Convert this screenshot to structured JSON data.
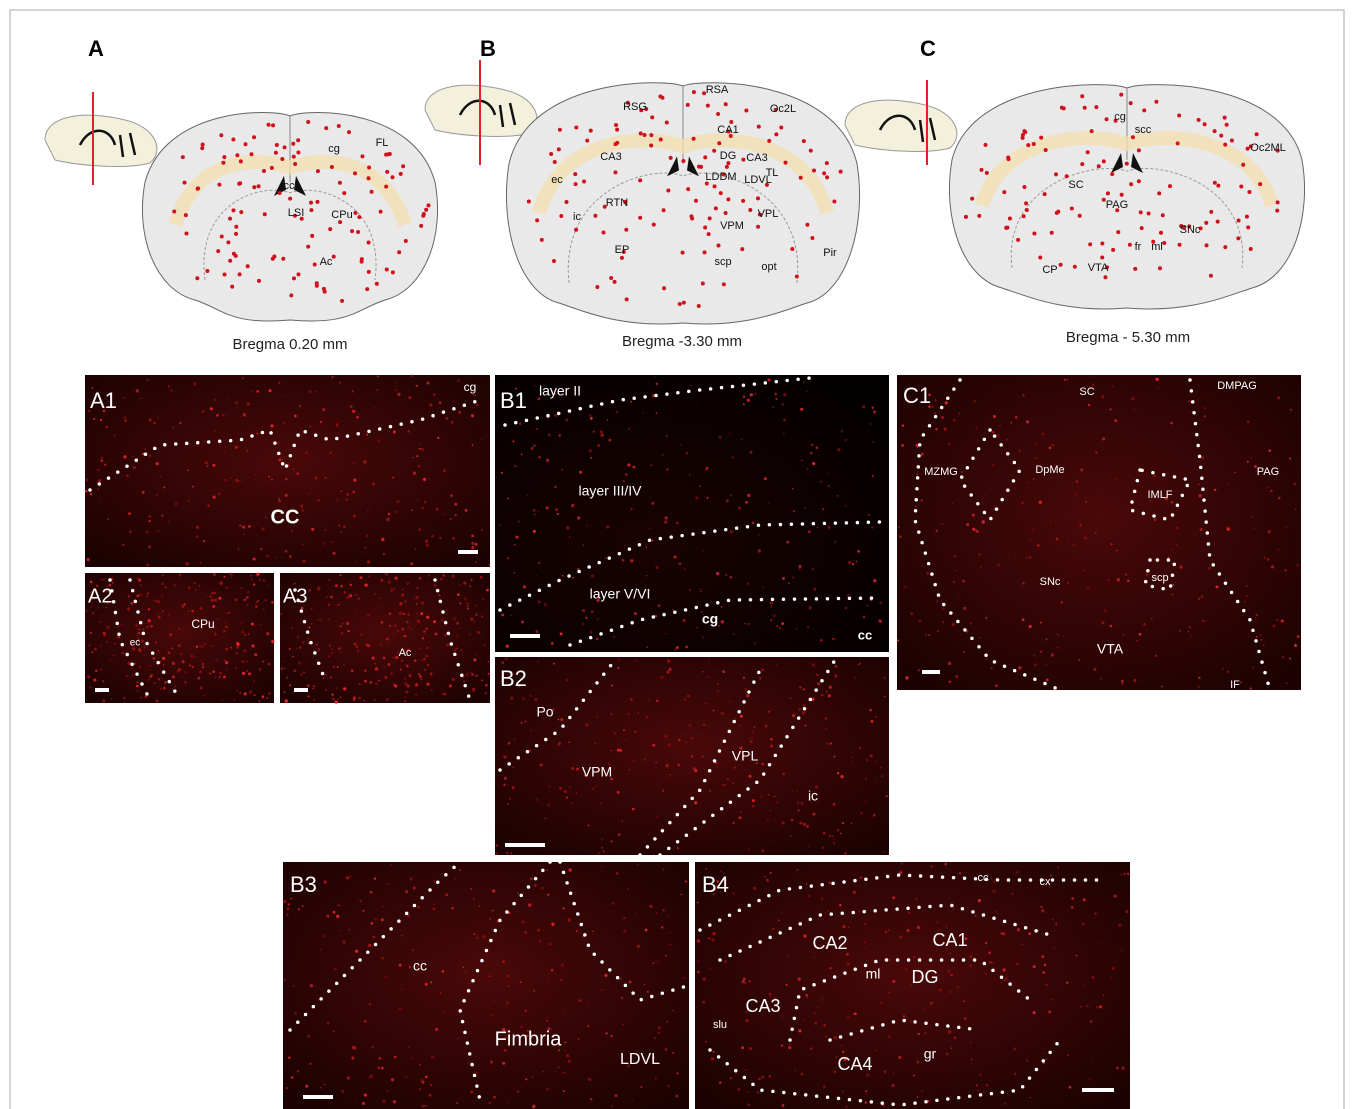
{
  "panels": [
    {
      "label": "A",
      "caption": "Bregma 0.20 mm",
      "regions": [
        "cg",
        "FL",
        "cc",
        "LSI",
        "CPu",
        "Ac"
      ]
    },
    {
      "label": "B",
      "caption": "Bregma -3.30 mm",
      "regions": [
        "RSA",
        "RSG",
        "Oc2L",
        "CA1",
        "CA3",
        "DG",
        "CA3",
        "ec",
        "TL",
        "LDDM",
        "LDVL",
        "RTN",
        "ic",
        "VPL",
        "VPM",
        "EP",
        "scp",
        "opt",
        "Pir"
      ]
    },
    {
      "label": "C",
      "caption": "Bregma - 5.30 mm",
      "regions": [
        "cg",
        "scc",
        "Oc2ML",
        "SC",
        "PAG",
        "SNc",
        "fr",
        "ml",
        "CP",
        "VTA"
      ]
    }
  ],
  "micrographs": [
    {
      "label": "A1",
      "regions": [
        "cg",
        "CC"
      ]
    },
    {
      "label": "A2",
      "regions": [
        "ec",
        "CPu"
      ]
    },
    {
      "label": "A3",
      "regions": [
        "Ac"
      ]
    },
    {
      "label": "B1",
      "regions": [
        "layer II",
        "layer III/IV",
        "layer V/VI",
        "cg",
        "cc"
      ]
    },
    {
      "label": "B2",
      "regions": [
        "Po",
        "VPM",
        "VPL",
        "ic"
      ]
    },
    {
      "label": "C1",
      "regions": [
        "SC",
        "DMPAG",
        "MZMG",
        "DpMe",
        "PAG",
        "IMLF",
        "scp",
        "SNc",
        "VTA",
        "IF"
      ]
    },
    {
      "label": "B3",
      "regions": [
        "cc",
        "Fimbria",
        "LDVL"
      ]
    },
    {
      "label": "B4",
      "regions": [
        "cc",
        "cx",
        "CA2",
        "CA1",
        "ml",
        "DG",
        "CA3",
        "slu",
        "CA4",
        "gr"
      ]
    }
  ]
}
